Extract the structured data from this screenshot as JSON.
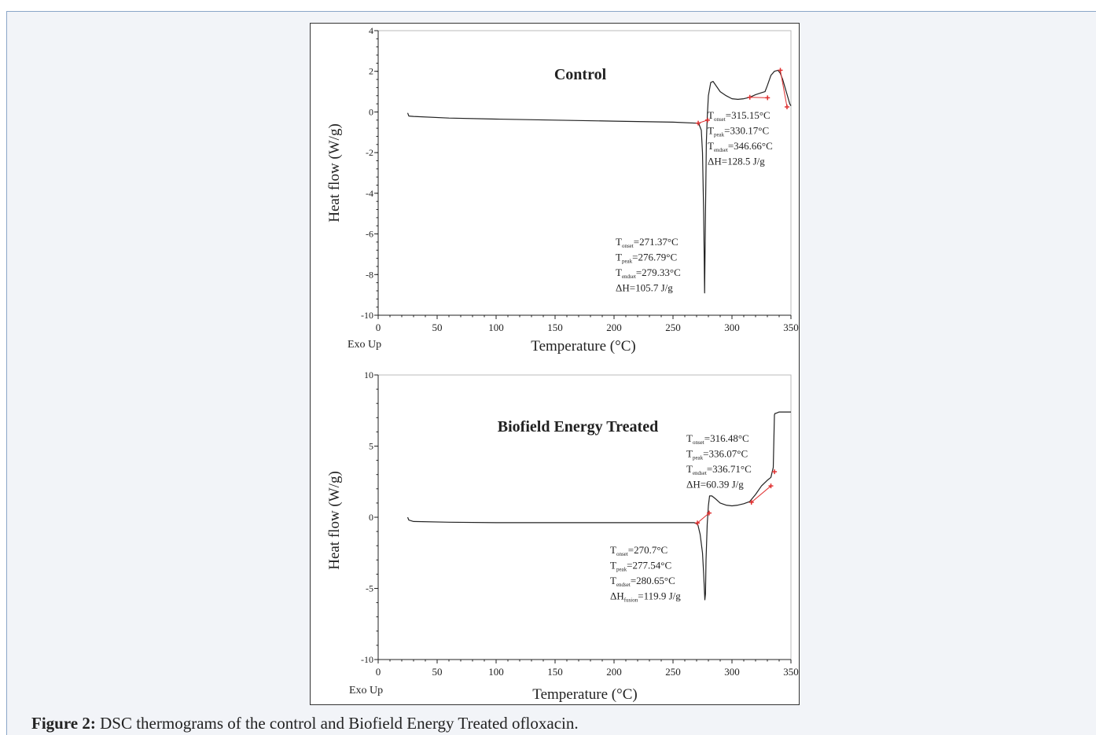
{
  "caption": {
    "label": "Figure 2:",
    "text": "DSC thermograms of the control and Biofield Energy Treated  ofloxacin."
  },
  "chart_data": [
    {
      "type": "line",
      "title": "Control",
      "xlabel": "Temperature (°C)",
      "ylabel": "Heat flow (W/g)",
      "corner_label": "Exo Up",
      "xlim": [
        0,
        350
      ],
      "ylim": [
        -10,
        4
      ],
      "x_ticks": [
        0,
        50,
        100,
        150,
        200,
        250,
        300,
        350
      ],
      "y_ticks": [
        4,
        2,
        0,
        -2,
        -4,
        -6,
        -8,
        -10
      ],
      "line_color": "#222222",
      "marker_color": "#e03030",
      "series": [
        {
          "x": [
            25,
            26,
            30,
            60,
            100,
            150,
            200,
            250,
            270,
            272,
            274,
            275,
            276,
            276.8,
            277.5,
            278.3,
            279,
            280,
            282,
            284,
            287,
            290,
            295,
            300,
            305,
            310,
            315,
            320,
            325,
            328,
            330,
            333,
            336,
            339,
            341,
            343,
            345,
            347,
            349,
            350
          ],
          "y": [
            -0.05,
            -0.2,
            -0.22,
            -0.3,
            -0.35,
            -0.4,
            -0.45,
            -0.5,
            -0.55,
            -0.6,
            -0.9,
            -2.0,
            -5.0,
            -8.9,
            -5.0,
            -1.5,
            -0.3,
            0.8,
            1.45,
            1.5,
            1.25,
            1.0,
            0.8,
            0.65,
            0.62,
            0.65,
            0.72,
            0.85,
            0.95,
            1.0,
            1.3,
            1.8,
            2.0,
            2.05,
            1.9,
            1.6,
            1.2,
            0.8,
            0.4,
            0.3
          ]
        }
      ],
      "markers": [
        {
          "x": 271.37,
          "y": -0.55
        },
        {
          "x": 279.33,
          "y": -0.4
        },
        {
          "x": 315.15,
          "y": 0.72
        },
        {
          "x": 330.17,
          "y": 0.7
        },
        {
          "x": 341,
          "y": 2.05
        },
        {
          "x": 346.66,
          "y": 0.25
        }
      ],
      "annotations": [
        {
          "lines": [
            {
              "base": "T",
              "sub": "onset",
              "rest": "=271.37°C"
            },
            {
              "base": "T",
              "sub": "peak",
              "rest": "=276.79°C"
            },
            {
              "base": "T",
              "sub": "endset",
              "rest": "=279.33°C"
            },
            {
              "base": "ΔH=105.7  J/g",
              "sub": "",
              "rest": ""
            }
          ]
        },
        {
          "lines": [
            {
              "base": "T",
              "sub": "onset",
              "rest": "=315.15°C"
            },
            {
              "base": "T",
              "sub": "peak",
              "rest": "=330.17°C"
            },
            {
              "base": "T",
              "sub": "endset",
              "rest": "=346.66°C"
            },
            {
              "base": "ΔH=128.5  J/g",
              "sub": "",
              "rest": ""
            }
          ]
        }
      ]
    },
    {
      "type": "line",
      "title": "Biofield Energy Treated",
      "xlabel": "Temperature (°C)",
      "ylabel": "Heat flow (W/g)",
      "corner_label": "Exo Up",
      "xlim": [
        0,
        350
      ],
      "ylim": [
        -10,
        10
      ],
      "x_ticks": [
        0,
        50,
        100,
        150,
        200,
        250,
        300,
        350
      ],
      "y_ticks": [
        10,
        5,
        0,
        -5,
        -10
      ],
      "line_color": "#222222",
      "marker_color": "#e03030",
      "series": [
        {
          "x": [
            25,
            26,
            30,
            60,
            100,
            150,
            200,
            250,
            268,
            271,
            273,
            275,
            276,
            277,
            277.5,
            278,
            279,
            280,
            281,
            283,
            286,
            290,
            295,
            300,
            305,
            310,
            315,
            320,
            325,
            330,
            333,
            335,
            336,
            336.5,
            337,
            340,
            350
          ],
          "y": [
            0,
            -0.2,
            -0.3,
            -0.35,
            -0.38,
            -0.38,
            -0.38,
            -0.38,
            -0.38,
            -0.5,
            -1.2,
            -2.5,
            -4.0,
            -5.8,
            -5.4,
            -3.0,
            -0.5,
            0.8,
            1.5,
            1.5,
            1.3,
            1.0,
            0.85,
            0.8,
            0.85,
            0.95,
            1.1,
            1.6,
            2.2,
            2.6,
            2.8,
            3.5,
            7.2,
            7.3,
            7.3,
            7.4,
            7.4
          ]
        }
      ],
      "markers": [
        {
          "x": 270.7,
          "y": -0.4
        },
        {
          "x": 280.65,
          "y": 0.3
        },
        {
          "x": 316.48,
          "y": 1.05
        },
        {
          "x": 333,
          "y": 2.2
        },
        {
          "x": 336.07,
          "y": 3.2
        }
      ],
      "annotations": [
        {
          "lines": [
            {
              "base": "T",
              "sub": "onset",
              "rest": "=270.7°C"
            },
            {
              "base": "T",
              "sub": "peak",
              "rest": "=277.54°C"
            },
            {
              "base": "T",
              "sub": "endset",
              "rest": "=280.65°C"
            },
            {
              "base": "ΔH",
              "sub": "fusion",
              "rest": "=119.9  J/g"
            }
          ]
        },
        {
          "lines": [
            {
              "base": "T",
              "sub": "onset",
              "rest": "=316.48°C"
            },
            {
              "base": "T",
              "sub": "peak",
              "rest": "=336.07°C"
            },
            {
              "base": "T",
              "sub": "endset",
              "rest": "=336.71°C"
            },
            {
              "base": "ΔH=60.39  J/g",
              "sub": "",
              "rest": ""
            }
          ]
        }
      ]
    }
  ]
}
